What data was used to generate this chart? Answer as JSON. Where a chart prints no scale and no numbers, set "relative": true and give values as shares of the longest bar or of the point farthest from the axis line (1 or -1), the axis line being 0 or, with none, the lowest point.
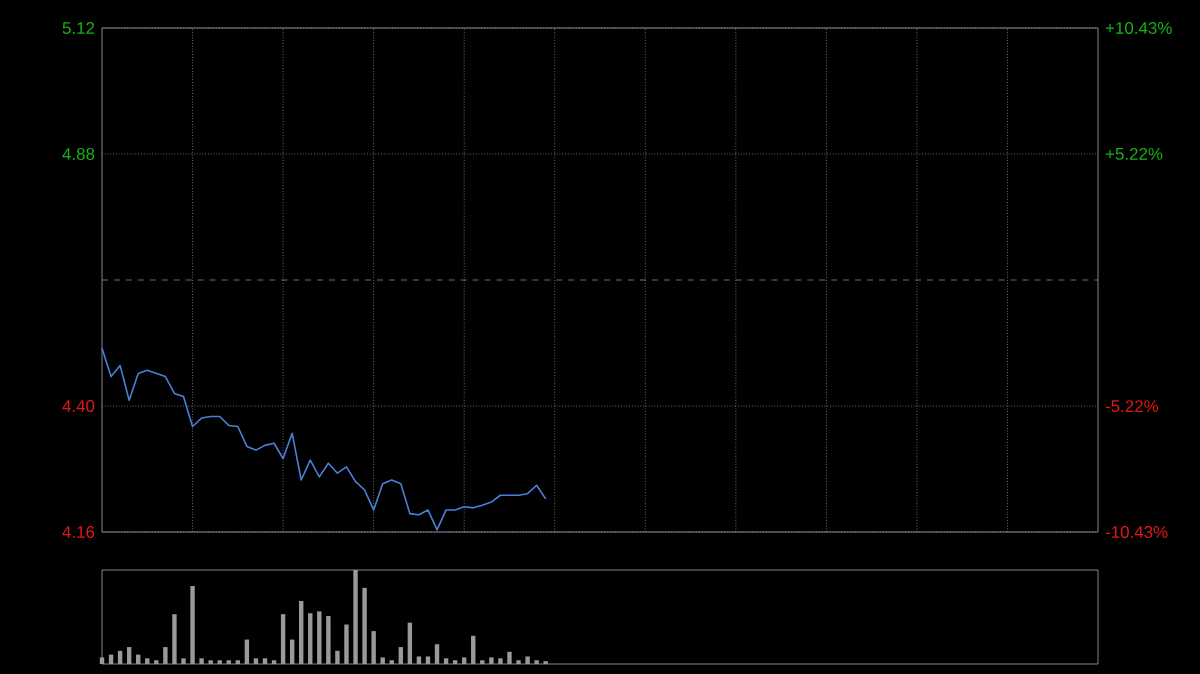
{
  "chart_data": [
    {
      "type": "line",
      "categories": [
        null,
        null,
        null,
        null,
        null,
        null,
        null,
        null,
        null,
        null,
        null,
        null,
        null,
        null,
        null,
        null,
        null,
        null,
        null,
        null,
        null,
        null,
        null,
        null,
        null,
        null,
        null,
        null,
        null,
        null,
        null,
        null,
        null,
        null,
        null,
        null,
        null,
        null,
        null,
        null,
        null,
        null,
        null,
        null,
        null,
        null,
        null,
        null,
        null,
        null,
        null,
        null,
        null,
        null,
        null,
        null,
        null,
        null,
        null,
        null,
        null,
        null,
        null,
        null,
        null,
        null,
        null,
        null,
        null,
        null,
        null,
        null,
        null,
        null,
        null,
        null,
        null,
        null,
        null,
        null,
        null,
        null,
        null,
        null,
        null,
        null,
        null,
        null,
        null,
        null,
        null,
        null,
        null,
        null,
        null,
        null,
        null,
        null,
        null,
        null,
        null,
        null,
        null,
        null,
        null,
        null,
        null,
        null,
        null,
        null,
        null
      ],
      "series": [
        {
          "color": "#4a80d8",
          "values": [
            4.51,
            4.456,
            4.477,
            4.411,
            4.462,
            4.468,
            4.462,
            4.456,
            4.424,
            4.418,
            4.361,
            4.377,
            4.38,
            4.38,
            4.363,
            4.361,
            4.323,
            4.316,
            4.325,
            4.329,
            4.3,
            4.348,
            4.259,
            4.297,
            4.265,
            4.291,
            4.272,
            4.284,
            4.256,
            4.24,
            4.202,
            4.252,
            4.259,
            4.252,
            4.195,
            4.193,
            4.202,
            4.164,
            4.202,
            4.202,
            4.208,
            4.206,
            4.211,
            4.217,
            4.23,
            4.23,
            4.23,
            4.233,
            4.249,
            4.223,
            null,
            null,
            null,
            null,
            null,
            null,
            null,
            null,
            null,
            null,
            null,
            null,
            null,
            null,
            null,
            null,
            null,
            null,
            null,
            null,
            null,
            null,
            null,
            null,
            null,
            null,
            null,
            null,
            null,
            null,
            null,
            null,
            null,
            null,
            null,
            null,
            null,
            null,
            null,
            null,
            null,
            null,
            null,
            null,
            null,
            null,
            null,
            null,
            null,
            null,
            null,
            null,
            null,
            null,
            null,
            null,
            null,
            null,
            null,
            null,
            null
          ]
        }
      ],
      "ylim": [
        4.16,
        5.12
      ],
      "yticks": [
        {
          "value": 4.16,
          "label": "4.16"
        },
        {
          "value": 4.4,
          "label": "4.40"
        },
        {
          "value": 4.88,
          "label": "4.88"
        },
        {
          "value": 5.12,
          "label": "5.12"
        }
      ],
      "y2lim": [
        -10.43,
        10.43
      ],
      "y2ticks": [
        {
          "value": -10.43,
          "label": "-10.43%"
        },
        {
          "value": -5.22,
          "label": "-5.22%"
        },
        {
          "value": 5.22,
          "label": "+5.22%"
        },
        {
          "value": 10.43,
          "label": "+10.43%"
        }
      ],
      "ref_lines": [
        {
          "axis": "y",
          "value": 4.64,
          "line_style": "dashed"
        }
      ],
      "grid": true,
      "marker": "none"
    },
    {
      "type": "bar",
      "relative": true,
      "categories": [
        null,
        null,
        null,
        null,
        null,
        null,
        null,
        null,
        null,
        null,
        null,
        null,
        null,
        null,
        null,
        null,
        null,
        null,
        null,
        null,
        null,
        null,
        null,
        null,
        null,
        null,
        null,
        null,
        null,
        null,
        null,
        null,
        null,
        null,
        null,
        null,
        null,
        null,
        null,
        null,
        null,
        null,
        null,
        null,
        null,
        null,
        null,
        null,
        null,
        null,
        null,
        null,
        null,
        null,
        null,
        null,
        null,
        null,
        null,
        null,
        null,
        null,
        null,
        null,
        null,
        null,
        null,
        null,
        null,
        null,
        null,
        null,
        null,
        null,
        null,
        null,
        null,
        null,
        null,
        null,
        null,
        null,
        null,
        null,
        null,
        null,
        null,
        null,
        null,
        null,
        null,
        null,
        null,
        null,
        null,
        null,
        null,
        null,
        null,
        null,
        null,
        null,
        null,
        null,
        null,
        null,
        null,
        null,
        null,
        null,
        null
      ],
      "series": [
        {
          "color": "#9a9a9a",
          "values": [
            0.07,
            0.1,
            0.14,
            0.18,
            0.1,
            0.06,
            0.04,
            0.18,
            0.53,
            0.06,
            0.83,
            0.06,
            0.04,
            0.04,
            0.04,
            0.04,
            0.26,
            0.06,
            0.06,
            0.04,
            0.53,
            0.26,
            0.67,
            0.54,
            0.56,
            0.51,
            0.14,
            0.42,
            1.0,
            0.81,
            0.35,
            0.07,
            0.04,
            0.18,
            0.44,
            0.08,
            0.08,
            0.21,
            0.06,
            0.04,
            0.07,
            0.3,
            0.04,
            0.07,
            0.06,
            0.13,
            0.04,
            0.08,
            0.04,
            0.03,
            null,
            null,
            null,
            null,
            null,
            null,
            null,
            null,
            null,
            null,
            null,
            null,
            null,
            null,
            null,
            null,
            null,
            null,
            null,
            null,
            null,
            null,
            null,
            null,
            null,
            null,
            null,
            null,
            null,
            null,
            null,
            null,
            null,
            null,
            null,
            null,
            null,
            null,
            null,
            null,
            null,
            null,
            null,
            null,
            null,
            null,
            null,
            null,
            null,
            null,
            null,
            null,
            null,
            null,
            null,
            null,
            null,
            null,
            null,
            null,
            null
          ]
        }
      ]
    }
  ]
}
